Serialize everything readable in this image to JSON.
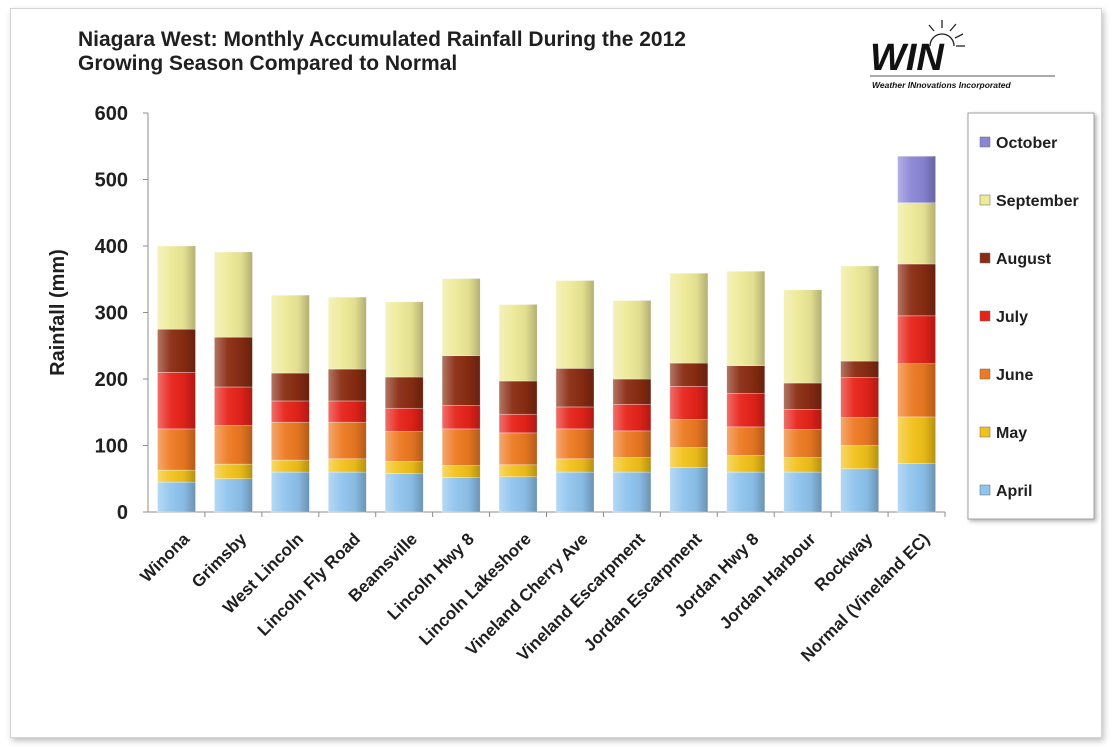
{
  "chart_data": {
    "type": "bar",
    "stacked": true,
    "title_lines": [
      "Niagara West: Monthly Accumulated Rainfall During the 2012",
      "Growing Season Compared to Normal"
    ],
    "xlabel": "",
    "ylabel": "Rainfall (mm)",
    "ylim": [
      0,
      600
    ],
    "yticks": [
      0,
      100,
      200,
      300,
      400,
      500,
      600
    ],
    "grid": false,
    "legend_position": "right",
    "categories": [
      "Winona",
      "Grimsby",
      "West Lincoln",
      "Lincoln Fly Road",
      "Beamsville",
      "Lincoln Hwy 8",
      "Lincoln Lakeshore",
      "Vineland Cherry Ave",
      "Vineland Escarpment",
      "Jordan Escarpment",
      "Jordan Hwy 8",
      "Jordan Harbour",
      "Rockway",
      "Normal (Vineland EC)"
    ],
    "series": [
      {
        "name": "April",
        "color": "#8fc4ee",
        "values": [
          45,
          50,
          60,
          60,
          58,
          52,
          53,
          60,
          60,
          67,
          60,
          60,
          65,
          73
        ]
      },
      {
        "name": "May",
        "color": "#f2c21a",
        "values": [
          18,
          22,
          18,
          20,
          18,
          18,
          18,
          20,
          22,
          30,
          25,
          22,
          35,
          70
        ]
      },
      {
        "name": "June",
        "color": "#ee7a22",
        "values": [
          62,
          58,
          57,
          55,
          45,
          55,
          48,
          45,
          40,
          42,
          43,
          42,
          42,
          80
        ]
      },
      {
        "name": "July",
        "color": "#e8231a",
        "values": [
          85,
          58,
          32,
          32,
          35,
          35,
          28,
          33,
          40,
          50,
          50,
          30,
          60,
          72
        ]
      },
      {
        "name": "August",
        "color": "#8a2c12",
        "values": [
          65,
          75,
          42,
          48,
          47,
          75,
          50,
          58,
          38,
          35,
          42,
          40,
          25,
          78
        ]
      },
      {
        "name": "September",
        "color": "#eeea98",
        "values": [
          125,
          128,
          117,
          108,
          113,
          116,
          115,
          132,
          118,
          135,
          142,
          140,
          143,
          92
        ]
      },
      {
        "name": "October",
        "color": "#8a86d6",
        "values": [
          0,
          0,
          0,
          0,
          0,
          0,
          0,
          0,
          0,
          0,
          0,
          0,
          0,
          70
        ]
      }
    ]
  },
  "logo": {
    "wordmark": "WIN",
    "tagline": "Weather INnovations Incorporated"
  }
}
